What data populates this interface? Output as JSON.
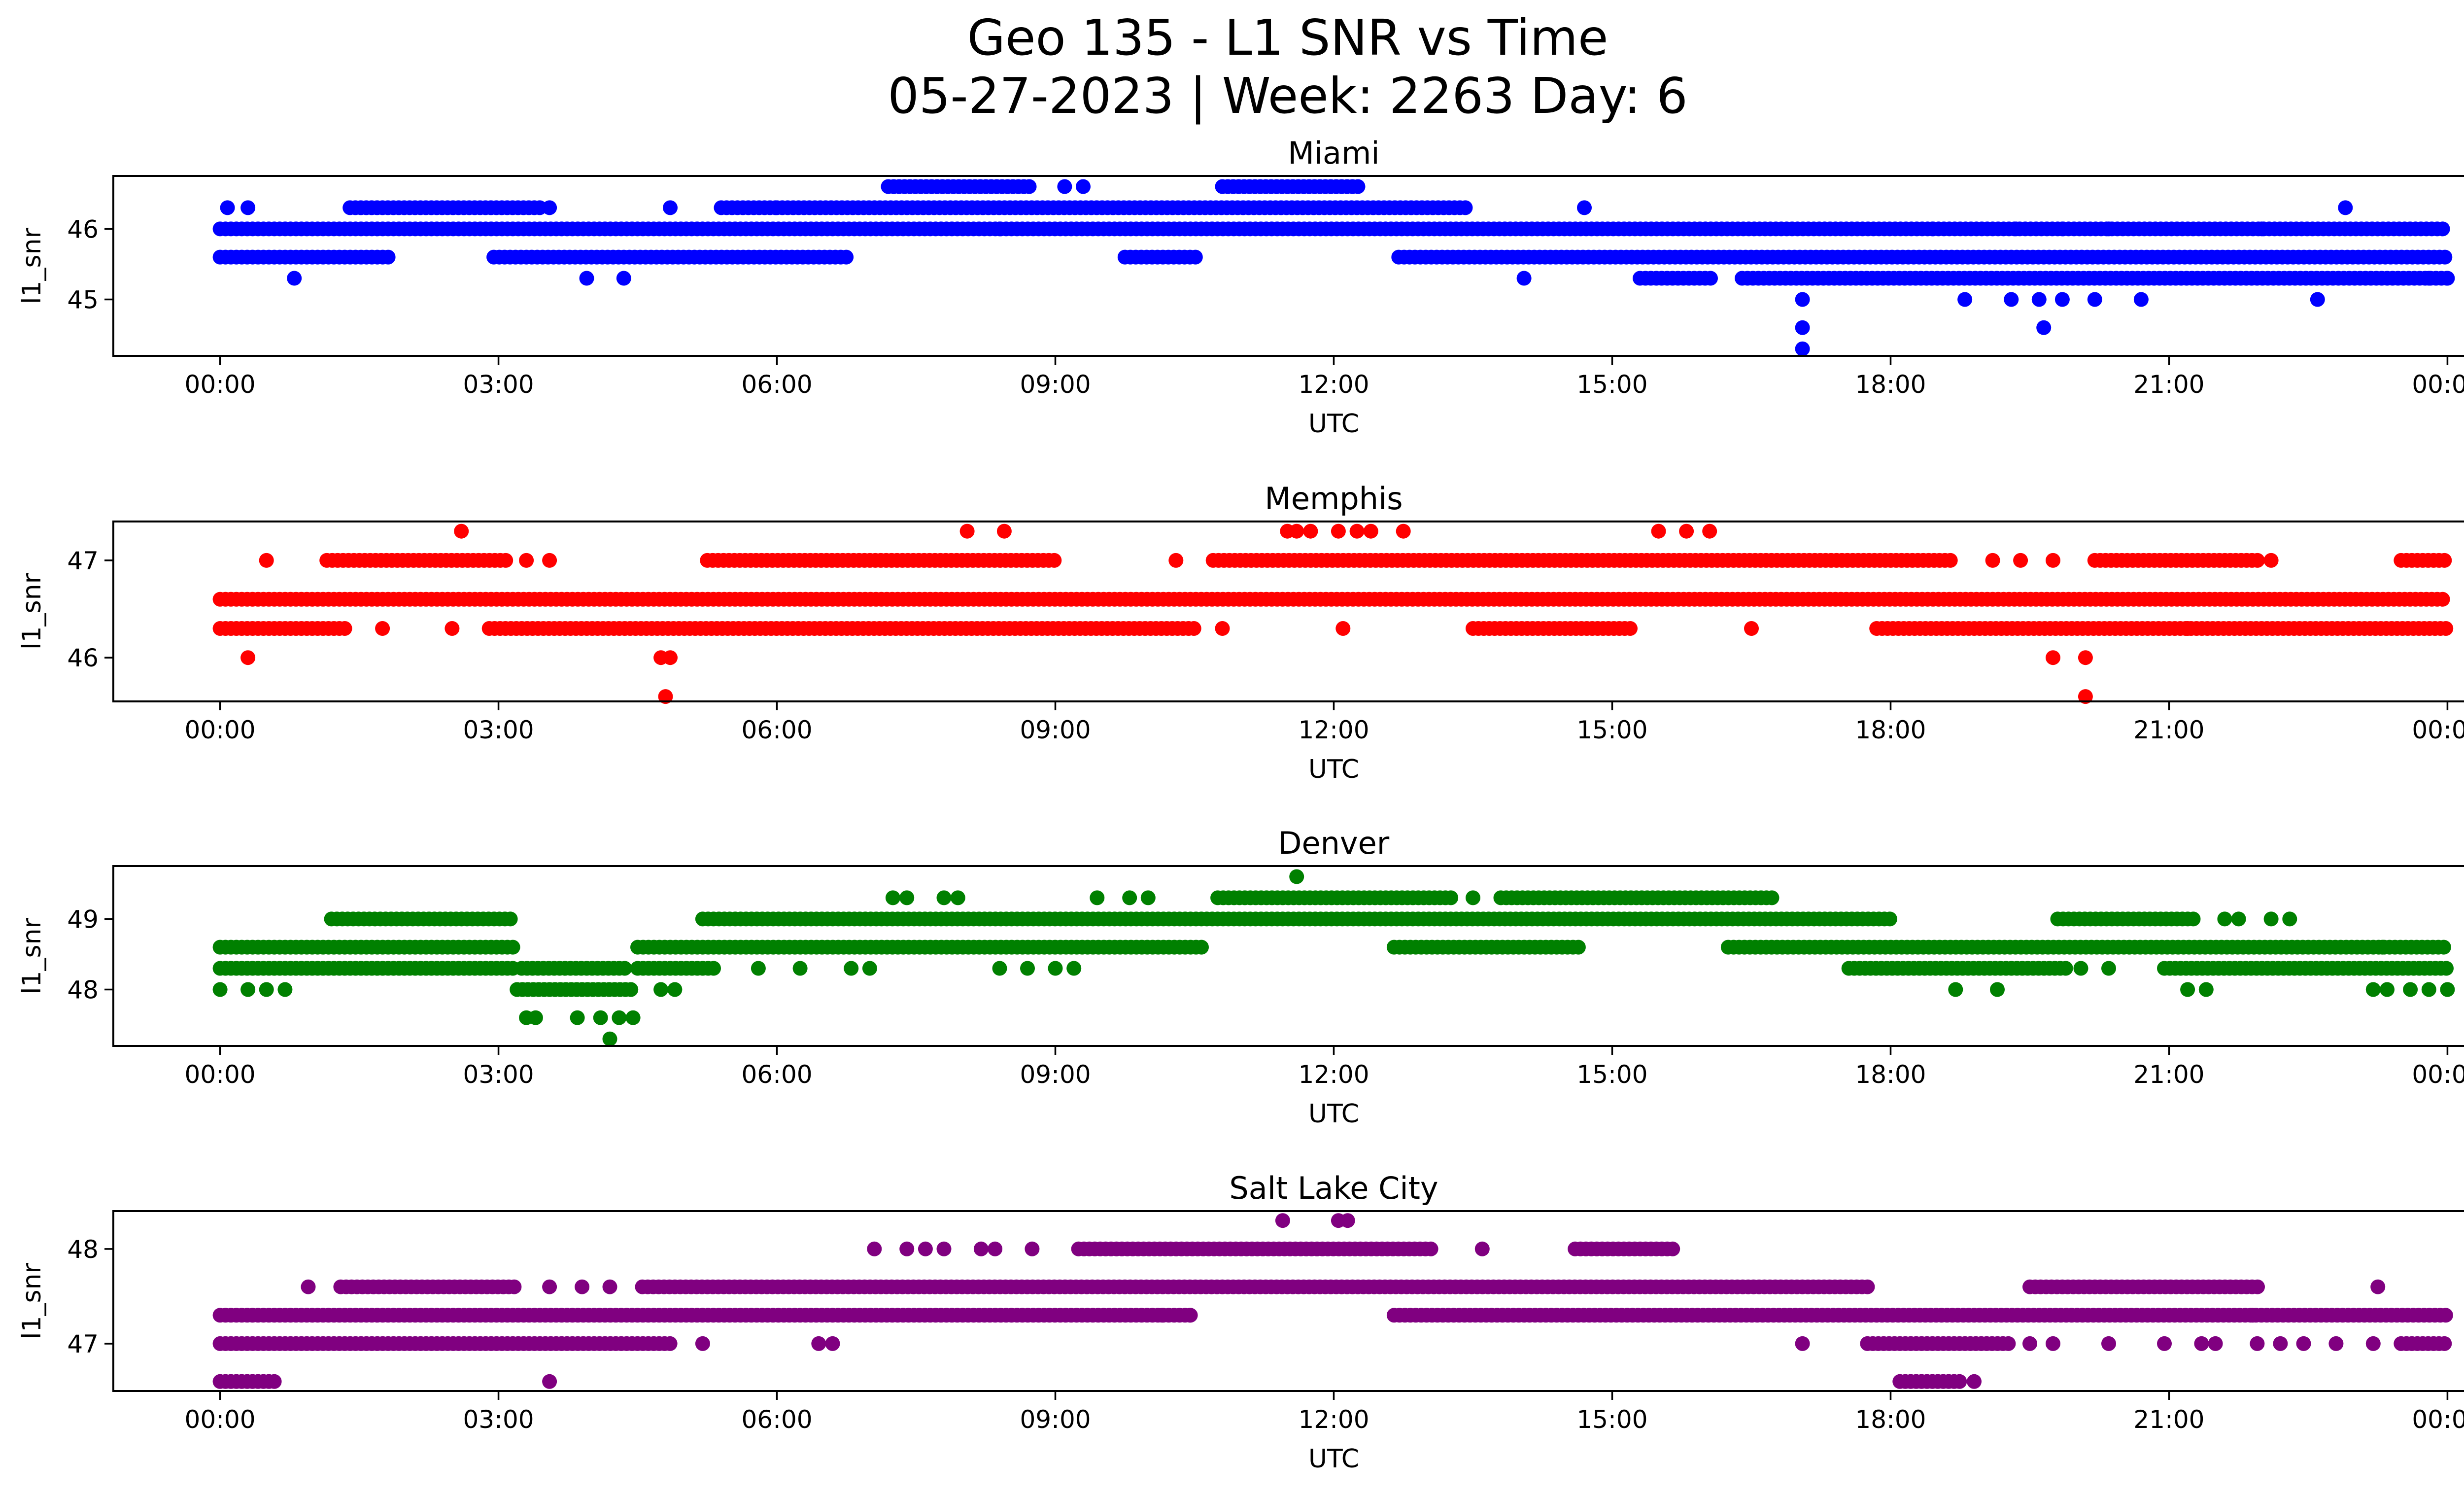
{
  "title_line1": "Geo 135 - L1 SNR vs Time",
  "title_line2": "05-27-2023 | Week: 2263 Day: 6",
  "chart_data": [
    {
      "type": "scatter",
      "title": "Miami",
      "color": "#0000ff",
      "xlabel": "UTC",
      "ylabel": "l1_snr",
      "x_ticks": [
        "00:00",
        "03:00",
        "06:00",
        "09:00",
        "12:00",
        "15:00",
        "18:00",
        "21:00",
        "00:00"
      ],
      "y_ticks": [
        45,
        46
      ],
      "xlim_hours": [
        -1.15,
        25.15
      ],
      "ylim": [
        44.2,
        46.75
      ],
      "bands": [
        {
          "y": 46.0,
          "segments": [
            [
              0.0,
              24.0
            ]
          ]
        },
        {
          "y": 45.6,
          "segments": [
            [
              0.0,
              1.85
            ],
            [
              2.95,
              6.8
            ],
            [
              9.75,
              10.55
            ],
            [
              12.7,
              24.0
            ]
          ]
        },
        {
          "y": 46.3,
          "segments": [
            [
              1.4,
              3.45
            ],
            [
              5.4,
              6.0
            ],
            [
              6.0,
              13.45
            ]
          ]
        },
        {
          "y": 45.3,
          "segments": [
            [
              15.3,
              16.1
            ],
            [
              16.4,
              24.0
            ]
          ]
        },
        {
          "y": 46.6,
          "segments": [
            [
              7.2,
              8.75
            ],
            [
              10.8,
              12.3
            ]
          ]
        }
      ],
      "points": [
        [
          0.08,
          46.3
        ],
        [
          0.3,
          46.3
        ],
        [
          0.8,
          45.3
        ],
        [
          3.55,
          46.3
        ],
        [
          3.95,
          45.3
        ],
        [
          4.35,
          45.3
        ],
        [
          4.85,
          46.3
        ],
        [
          8.4,
          46.0
        ],
        [
          9.1,
          46.6
        ],
        [
          9.3,
          46.6
        ],
        [
          14.05,
          45.3
        ],
        [
          14.7,
          46.3
        ],
        [
          17.05,
          45.0
        ],
        [
          17.05,
          44.6
        ],
        [
          17.05,
          44.3
        ],
        [
          18.8,
          45.0
        ],
        [
          19.3,
          45.0
        ],
        [
          19.6,
          45.0
        ],
        [
          19.65,
          44.6
        ],
        [
          19.85,
          45.0
        ],
        [
          20.2,
          45.0
        ],
        [
          20.7,
          45.0
        ],
        [
          22.6,
          45.0
        ],
        [
          22.9,
          46.3
        ],
        [
          23.8,
          45.3
        ],
        [
          24.0,
          45.3
        ],
        [
          18.45,
          46.0
        ],
        [
          19.35,
          46.0
        ],
        [
          19.85,
          46.0
        ],
        [
          20.35,
          46.0
        ],
        [
          22.0,
          46.0
        ]
      ]
    },
    {
      "type": "scatter",
      "title": "Memphis",
      "color": "#ff0000",
      "xlabel": "UTC",
      "ylabel": "l1_snr",
      "x_ticks": [
        "00:00",
        "03:00",
        "06:00",
        "09:00",
        "12:00",
        "15:00",
        "18:00",
        "21:00",
        "00:00"
      ],
      "y_ticks": [
        46,
        47
      ],
      "xlim_hours": [
        -1.15,
        25.15
      ],
      "ylim": [
        45.55,
        47.4
      ],
      "bands": [
        {
          "y": 46.6,
          "segments": [
            [
              0.0,
              24.0
            ]
          ]
        },
        {
          "y": 46.3,
          "segments": [
            [
              0.0,
              1.4
            ],
            [
              2.9,
              10.55
            ],
            [
              13.5,
              15.2
            ],
            [
              17.85,
              24.0
            ]
          ]
        },
        {
          "y": 47.0,
          "segments": [
            [
              1.15,
              3.1
            ],
            [
              5.25,
              9.0
            ],
            [
              10.7,
              18.7
            ],
            [
              20.2,
              22.0
            ],
            [
              23.5,
              24.0
            ]
          ]
        }
      ],
      "points": [
        [
          0.3,
          46.0
        ],
        [
          0.5,
          47.0
        ],
        [
          1.75,
          46.3
        ],
        [
          2.5,
          46.3
        ],
        [
          2.6,
          47.3
        ],
        [
          3.3,
          47.0
        ],
        [
          3.55,
          47.0
        ],
        [
          4.75,
          46.0
        ],
        [
          4.85,
          46.0
        ],
        [
          4.8,
          45.6
        ],
        [
          8.05,
          47.3
        ],
        [
          8.45,
          47.3
        ],
        [
          10.3,
          47.0
        ],
        [
          10.8,
          46.3
        ],
        [
          11.5,
          47.3
        ],
        [
          11.6,
          47.3
        ],
        [
          11.75,
          47.3
        ],
        [
          12.05,
          47.3
        ],
        [
          12.25,
          47.3
        ],
        [
          12.4,
          47.3
        ],
        [
          12.75,
          47.3
        ],
        [
          12.1,
          46.3
        ],
        [
          15.5,
          47.3
        ],
        [
          15.8,
          47.3
        ],
        [
          16.05,
          47.3
        ],
        [
          16.5,
          46.3
        ],
        [
          19.1,
          47.0
        ],
        [
          19.4,
          47.0
        ],
        [
          19.75,
          46.0
        ],
        [
          19.75,
          47.0
        ],
        [
          20.1,
          46.0
        ],
        [
          20.1,
          45.6
        ],
        [
          22.1,
          47.0
        ],
        [
          21.2,
          46.3
        ]
      ]
    },
    {
      "type": "scatter",
      "title": "Denver",
      "color": "#008000",
      "xlabel": "UTC",
      "ylabel": "l1_snr",
      "x_ticks": [
        "00:00",
        "03:00",
        "06:00",
        "09:00",
        "12:00",
        "15:00",
        "18:00",
        "21:00",
        "00:00"
      ],
      "y_ticks": [
        48,
        49
      ],
      "xlim_hours": [
        -1.15,
        25.15
      ],
      "ylim": [
        47.2,
        49.75
      ],
      "bands": [
        {
          "y": 48.3,
          "segments": [
            [
              0.0,
              3.2
            ],
            [
              3.25,
              4.4
            ],
            [
              4.5,
              5.35
            ],
            [
              17.55,
              19.9
            ],
            [
              20.95,
              24.0
            ]
          ]
        },
        {
          "y": 48.6,
          "segments": [
            [
              0.0,
              3.2
            ],
            [
              4.5,
              10.6
            ],
            [
              12.65,
              14.65
            ],
            [
              16.25,
              24.0
            ]
          ]
        },
        {
          "y": 49.0,
          "segments": [
            [
              1.2,
              3.15
            ],
            [
              5.2,
              18.0
            ],
            [
              19.8,
              21.3
            ]
          ]
        },
        {
          "y": 48.0,
          "segments": [
            [
              3.2,
              4.45
            ]
          ]
        },
        {
          "y": 49.3,
          "segments": [
            [
              10.75,
              13.3
            ],
            [
              13.8,
              16.75
            ]
          ]
        }
      ],
      "points": [
        [
          0.0,
          48.0
        ],
        [
          0.3,
          48.0
        ],
        [
          0.5,
          48.0
        ],
        [
          0.7,
          48.0
        ],
        [
          3.3,
          47.6
        ],
        [
          3.4,
          47.6
        ],
        [
          3.85,
          47.6
        ],
        [
          4.1,
          47.6
        ],
        [
          4.2,
          47.3
        ],
        [
          4.3,
          47.6
        ],
        [
          4.45,
          47.6
        ],
        [
          4.75,
          48.0
        ],
        [
          4.9,
          48.0
        ],
        [
          5.8,
          48.3
        ],
        [
          6.25,
          48.3
        ],
        [
          6.8,
          48.3
        ],
        [
          7.0,
          48.3
        ],
        [
          7.25,
          49.3
        ],
        [
          7.4,
          49.3
        ],
        [
          7.8,
          49.3
        ],
        [
          7.95,
          49.3
        ],
        [
          8.4,
          48.3
        ],
        [
          8.7,
          48.3
        ],
        [
          9.0,
          48.3
        ],
        [
          9.2,
          48.3
        ],
        [
          9.45,
          49.3
        ],
        [
          9.8,
          49.3
        ],
        [
          10.0,
          49.3
        ],
        [
          11.6,
          49.6
        ],
        [
          13.5,
          49.3
        ],
        [
          18.7,
          48.0
        ],
        [
          19.15,
          48.0
        ],
        [
          20.05,
          48.3
        ],
        [
          20.35,
          48.3
        ],
        [
          21.2,
          48.0
        ],
        [
          21.4,
          48.0
        ],
        [
          21.6,
          49.0
        ],
        [
          21.75,
          49.0
        ],
        [
          22.1,
          49.0
        ],
        [
          22.3,
          49.0
        ],
        [
          23.2,
          48.0
        ],
        [
          23.35,
          48.0
        ],
        [
          23.6,
          48.0
        ],
        [
          23.8,
          48.0
        ],
        [
          24.0,
          48.0
        ],
        [
          23.3,
          48.6
        ]
      ]
    },
    {
      "type": "scatter",
      "title": "Salt Lake City",
      "color": "#800080",
      "xlabel": "UTC",
      "ylabel": "l1_snr",
      "x_ticks": [
        "00:00",
        "03:00",
        "06:00",
        "09:00",
        "12:00",
        "15:00",
        "18:00",
        "21:00",
        "00:00"
      ],
      "y_ticks": [
        47,
        48
      ],
      "xlim_hours": [
        -1.15,
        25.15
      ],
      "ylim": [
        46.5,
        48.4
      ],
      "bands": [
        {
          "y": 47.3,
          "segments": [
            [
              0.0,
              10.5
            ],
            [
              12.65,
              24.0
            ]
          ]
        },
        {
          "y": 47.0,
          "segments": [
            [
              0.0,
              4.9
            ],
            [
              17.75,
              19.3
            ],
            [
              23.5,
              24.0
            ]
          ]
        },
        {
          "y": 47.6,
          "segments": [
            [
              1.3,
              3.2
            ],
            [
              4.55,
              17.8
            ],
            [
              19.5,
              22.0
            ]
          ]
        },
        {
          "y": 48.0,
          "segments": [
            [
              9.25,
              13.1
            ],
            [
              14.6,
              15.7
            ]
          ]
        },
        {
          "y": 46.6,
          "segments": [
            [
              0.0,
              0.6
            ],
            [
              18.1,
              18.8
            ]
          ]
        }
      ],
      "points": [
        [
          0.95,
          47.6
        ],
        [
          3.55,
          46.6
        ],
        [
          3.55,
          47.6
        ],
        [
          3.9,
          47.6
        ],
        [
          4.2,
          47.6
        ],
        [
          5.2,
          47.0
        ],
        [
          6.45,
          47.0
        ],
        [
          6.6,
          47.0
        ],
        [
          7.05,
          48.0
        ],
        [
          7.4,
          48.0
        ],
        [
          7.6,
          48.0
        ],
        [
          7.8,
          48.0
        ],
        [
          8.2,
          48.0
        ],
        [
          8.35,
          48.0
        ],
        [
          8.75,
          48.0
        ],
        [
          10.15,
          47.3
        ],
        [
          10.45,
          47.3
        ],
        [
          11.45,
          48.3
        ],
        [
          12.05,
          48.3
        ],
        [
          12.15,
          48.3
        ],
        [
          13.6,
          48.0
        ],
        [
          17.05,
          47.0
        ],
        [
          18.9,
          46.6
        ],
        [
          19.5,
          47.0
        ],
        [
          19.75,
          47.0
        ],
        [
          20.35,
          47.0
        ],
        [
          20.95,
          47.0
        ],
        [
          21.35,
          47.0
        ],
        [
          21.5,
          47.0
        ],
        [
          21.95,
          47.0
        ],
        [
          22.2,
          47.0
        ],
        [
          22.45,
          47.0
        ],
        [
          22.8,
          47.0
        ],
        [
          23.25,
          47.6
        ],
        [
          23.2,
          47.0
        ],
        [
          21.9,
          47.3
        ]
      ]
    }
  ]
}
